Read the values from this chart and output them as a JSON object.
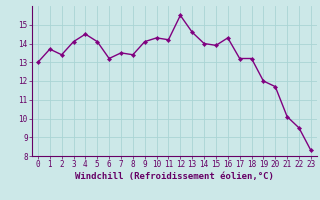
{
  "x": [
    0,
    1,
    2,
    3,
    4,
    5,
    6,
    7,
    8,
    9,
    10,
    11,
    12,
    13,
    14,
    15,
    16,
    17,
    18,
    19,
    20,
    21,
    22,
    23
  ],
  "y": [
    13.0,
    13.7,
    13.4,
    14.1,
    14.5,
    14.1,
    13.2,
    13.5,
    13.4,
    14.1,
    14.3,
    14.2,
    15.5,
    14.6,
    14.0,
    13.9,
    14.3,
    13.2,
    13.2,
    12.0,
    11.7,
    10.1,
    9.5,
    8.3
  ],
  "line_color": "#800080",
  "marker_color": "#800080",
  "bg_color": "#cce8e8",
  "grid_color": "#aad4d4",
  "xlabel": "Windchill (Refroidissement éolien,°C)",
  "ylim": [
    8,
    16
  ],
  "xlim_min": -0.5,
  "xlim_max": 23.5,
  "yticks": [
    8,
    9,
    10,
    11,
    12,
    13,
    14,
    15
  ],
  "xticks": [
    0,
    1,
    2,
    3,
    4,
    5,
    6,
    7,
    8,
    9,
    10,
    11,
    12,
    13,
    14,
    15,
    16,
    17,
    18,
    19,
    20,
    21,
    22,
    23
  ],
  "tick_fontsize": 5.5,
  "xlabel_fontsize": 6.5,
  "line_width": 1.0,
  "marker_size": 2.2
}
